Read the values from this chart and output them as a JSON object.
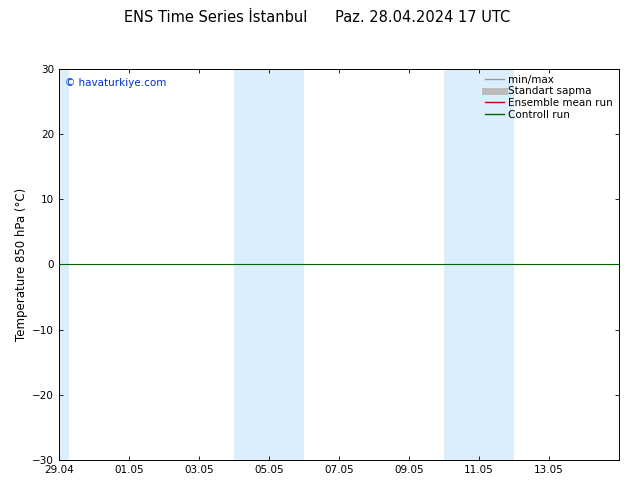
{
  "title": "ENS Time Series İstanbul      Paz. 28.04.2024 17 UTC",
  "ylabel": "Temperature 850 hPa (°C)",
  "ylim": [
    -30,
    30
  ],
  "yticks": [
    -30,
    -20,
    -10,
    0,
    10,
    20,
    30
  ],
  "xlim_start": 0,
  "xlim_end": 16,
  "xtick_positions": [
    0,
    2,
    4,
    6,
    8,
    10,
    12,
    14
  ],
  "xtick_labels": [
    "29.04",
    "01.05",
    "03.05",
    "05.05",
    "07.05",
    "09.05",
    "11.05",
    "13.05"
  ],
  "watermark": "© havaturkiye.com",
  "watermark_color": "#0033cc",
  "shaded_bands": [
    {
      "xmin": -0.2,
      "xmax": 0.3,
      "color": "#dceefb"
    },
    {
      "xmin": 5.0,
      "xmax": 7.0,
      "color": "#dceefb"
    },
    {
      "xmin": 11.0,
      "xmax": 13.0,
      "color": "#dceefb"
    }
  ],
  "control_run_y": 0,
  "control_run_color": "#006600",
  "ensemble_mean_color": "#cc0000",
  "legend_entries": [
    {
      "label": "min/max",
      "color": "#999999",
      "lw": 1.0
    },
    {
      "label": "Standart sapma",
      "color": "#bbbbbb",
      "lw": 5
    },
    {
      "label": "Ensemble mean run",
      "color": "#cc0000",
      "lw": 1.0
    },
    {
      "label": "Controll run",
      "color": "#006600",
      "lw": 1.0
    }
  ],
  "bg_color": "#ffffff",
  "plot_bg_color": "#ffffff",
  "title_fontsize": 10.5,
  "axis_label_fontsize": 8.5,
  "tick_fontsize": 7.5,
  "watermark_fontsize": 7.5,
  "legend_fontsize": 7.5
}
